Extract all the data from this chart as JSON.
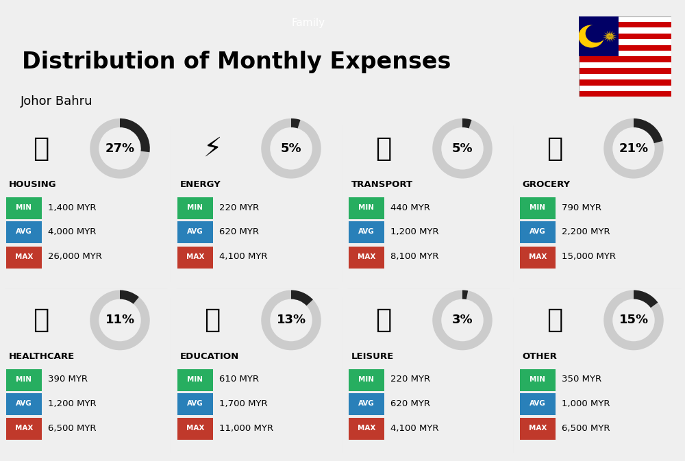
{
  "title": "Distribution of Monthly Expenses",
  "subtitle": "Johor Bahru",
  "family_label": "Family",
  "bg_color": "#efefef",
  "categories": [
    {
      "name": "HOUSING",
      "percent": 27,
      "min": "1,400 MYR",
      "avg": "4,000 MYR",
      "max": "26,000 MYR",
      "row": 0,
      "col": 0
    },
    {
      "name": "ENERGY",
      "percent": 5,
      "min": "220 MYR",
      "avg": "620 MYR",
      "max": "4,100 MYR",
      "row": 0,
      "col": 1
    },
    {
      "name": "TRANSPORT",
      "percent": 5,
      "min": "440 MYR",
      "avg": "1,200 MYR",
      "max": "8,100 MYR",
      "row": 0,
      "col": 2
    },
    {
      "name": "GROCERY",
      "percent": 21,
      "min": "790 MYR",
      "avg": "2,200 MYR",
      "max": "15,000 MYR",
      "row": 0,
      "col": 3
    },
    {
      "name": "HEALTHCARE",
      "percent": 11,
      "min": "390 MYR",
      "avg": "1,200 MYR",
      "max": "6,500 MYR",
      "row": 1,
      "col": 0
    },
    {
      "name": "EDUCATION",
      "percent": 13,
      "min": "610 MYR",
      "avg": "1,700 MYR",
      "max": "11,000 MYR",
      "row": 1,
      "col": 1
    },
    {
      "name": "LEISURE",
      "percent": 3,
      "min": "220 MYR",
      "avg": "620 MYR",
      "max": "4,100 MYR",
      "row": 1,
      "col": 2
    },
    {
      "name": "OTHER",
      "percent": 15,
      "min": "350 MYR",
      "avg": "1,000 MYR",
      "max": "6,500 MYR",
      "row": 1,
      "col": 3
    }
  ],
  "color_min": "#27ae60",
  "color_avg": "#2980b9",
  "color_max": "#c0392b",
  "donut_filled": "#222222",
  "donut_empty": "#cccccc"
}
